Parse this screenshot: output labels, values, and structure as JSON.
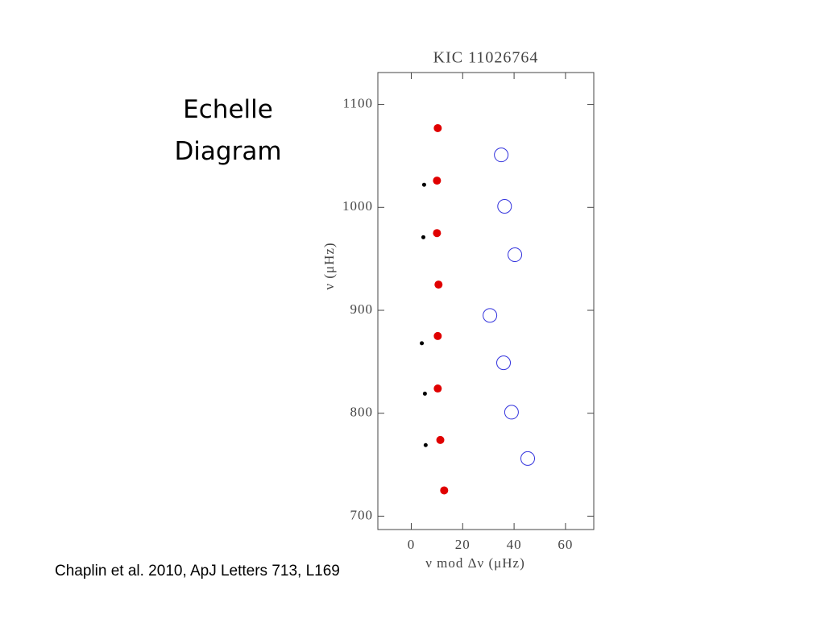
{
  "slide": {
    "title": "Echelle Diagram",
    "caption": "Chaplin et al. 2010, ApJ Letters 713, L169"
  },
  "chart_data": {
    "type": "scatter",
    "title": "KIC 11026764",
    "xlabel": "ν mod Δν (μHz)",
    "ylabel": "ν (μHz)",
    "xlim": [
      -13,
      71
    ],
    "xticks": [
      0,
      20,
      40,
      60
    ],
    "ylim": [
      687,
      1131
    ],
    "yticks": [
      700,
      800,
      900,
      1000,
      1100
    ],
    "series": [
      {
        "color": "#e00000",
        "marker": "filled",
        "x": [
          10.3,
          10,
          10,
          10.6,
          10.3,
          10.3,
          11.3,
          12.8
        ],
        "values": [
          1077,
          1026,
          975,
          925,
          875,
          824,
          774,
          725
        ]
      },
      {
        "color": "#000000",
        "marker": "dot",
        "x": [
          5,
          4.7,
          4.1,
          5.3,
          5.6
        ],
        "values": [
          1022,
          971,
          868,
          819,
          769
        ]
      },
      {
        "color": "#3333dd",
        "marker": "open",
        "x": [
          35,
          36.3,
          40.3,
          30.6,
          35.9,
          39,
          45.3
        ],
        "values": [
          1051,
          1001,
          954,
          895,
          849,
          801,
          756
        ]
      }
    ]
  }
}
